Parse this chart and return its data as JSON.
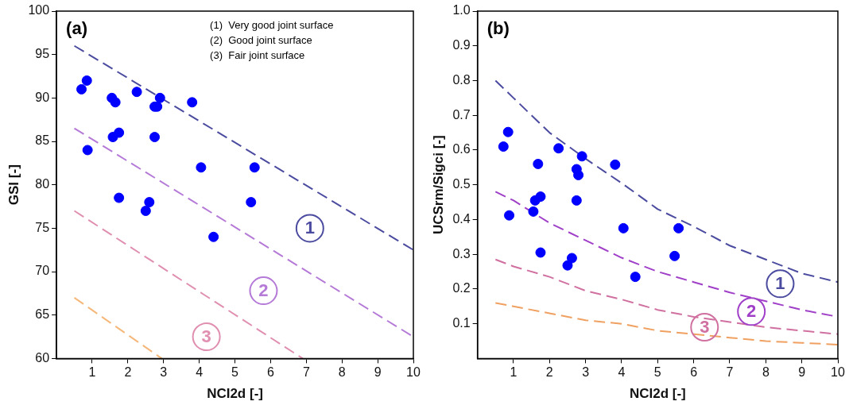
{
  "chart_data": [
    {
      "type": "scatter",
      "title": "(a)",
      "xlabel": "NCI2d [-]",
      "ylabel": "GSI [-]",
      "xlim": [
        0,
        10
      ],
      "ylim": [
        60,
        100
      ],
      "xticks": [
        1,
        2,
        3,
        4,
        5,
        6,
        7,
        8,
        9,
        10
      ],
      "yticks": [
        60,
        65,
        70,
        75,
        80,
        85,
        90,
        95,
        100
      ],
      "grid": false,
      "legend": false,
      "annotations": [
        "(1)  Very good joint surface",
        "(2)  Good joint surface",
        "(3)  Fair joint surface",
        {
          "text": "1",
          "x": 7.1,
          "y": 75
        },
        {
          "text": "2",
          "x": 5.8,
          "y": 67.8
        },
        {
          "text": "3",
          "x": 4.2,
          "y": 62.5
        }
      ],
      "series": [
        {
          "color": "#0000ff",
          "marker": "circle",
          "x": [
            0.7,
            0.85,
            0.87,
            1.55,
            1.65,
            1.58,
            1.75,
            1.75,
            2.25,
            2.75,
            2.82,
            2.9,
            2.75,
            2.6,
            2.5,
            3.8,
            4.05,
            4.4,
            5.55,
            5.45
          ],
          "values": [
            91,
            92,
            84,
            90,
            89.5,
            85.5,
            86,
            78.5,
            90.7,
            89,
            89,
            90,
            85.5,
            78,
            77,
            89.5,
            82,
            74,
            82,
            78
          ]
        },
        {
          "type": "line",
          "color": "#4b4ba0",
          "marker": "none",
          "line_style": "dashed",
          "x": [
            0.5,
            10
          ],
          "values": [
            96,
            72.5
          ]
        },
        {
          "type": "line",
          "color": "#b57ad8",
          "marker": "none",
          "line_style": "dashed",
          "x": [
            0.5,
            10
          ],
          "values": [
            86.5,
            62.5
          ]
        },
        {
          "type": "line",
          "color": "#e08fb0",
          "marker": "none",
          "line_style": "dashed",
          "x": [
            0.5,
            6.9
          ],
          "values": [
            77,
            60
          ]
        },
        {
          "type": "line",
          "color": "#f5b77a",
          "marker": "none",
          "line_style": "dashed",
          "x": [
            0.5,
            2.95
          ],
          "values": [
            67,
            60
          ]
        }
      ]
    },
    {
      "type": "scatter",
      "title": "(b)",
      "xlabel": "NCI2d [-]",
      "ylabel": "UCSrm/Sigci [-]",
      "xlim": [
        0,
        10
      ],
      "ylim": [
        0,
        1
      ],
      "xticks": [
        1,
        2,
        3,
        4,
        5,
        6,
        7,
        8,
        9,
        10
      ],
      "yticks": [
        0.1,
        0.2,
        0.3,
        0.4,
        0.5,
        0.6,
        0.7,
        0.8,
        0.9,
        {
          "value": 1,
          "label": "1.0"
        }
      ],
      "grid": false,
      "legend": false,
      "annotations": [
        {
          "text": "1",
          "x": 8.4,
          "y": 0.215
        },
        {
          "text": "2",
          "x": 7.6,
          "y": 0.135
        },
        {
          "text": "3",
          "x": 6.3,
          "y": 0.09
        }
      ],
      "series": [
        {
          "color": "#0000ff",
          "marker": "circle",
          "x": [
            0.72,
            0.85,
            0.88,
            1.55,
            1.6,
            1.75,
            1.68,
            1.75,
            2.25,
            2.75,
            2.8,
            2.9,
            2.75,
            2.62,
            2.5,
            3.82,
            4.05,
            4.38,
            5.58,
            5.47
          ],
          "values": [
            0.61,
            0.652,
            0.412,
            0.423,
            0.455,
            0.466,
            0.56,
            0.305,
            0.605,
            0.545,
            0.528,
            0.582,
            0.455,
            0.289,
            0.268,
            0.558,
            0.375,
            0.235,
            0.375,
            0.295
          ]
        },
        {
          "type": "line",
          "color": "#4b4ba0",
          "marker": "none",
          "line_style": "dashed",
          "x": [
            0.5,
            1,
            2,
            3,
            4,
            5,
            6,
            7,
            8,
            9,
            10
          ],
          "values": [
            0.8,
            0.75,
            0.65,
            0.575,
            0.505,
            0.43,
            0.38,
            0.325,
            0.285,
            0.245,
            0.22
          ]
        },
        {
          "type": "line",
          "color": "#a040c8",
          "marker": "none",
          "line_style": "dashed",
          "x": [
            0.5,
            1,
            2,
            3,
            4,
            5,
            6,
            7,
            8,
            9,
            10
          ],
          "values": [
            0.48,
            0.455,
            0.39,
            0.34,
            0.29,
            0.25,
            0.22,
            0.19,
            0.165,
            0.14,
            0.12
          ]
        },
        {
          "type": "line",
          "color": "#d070a0",
          "marker": "none",
          "line_style": "dashed",
          "x": [
            0.5,
            1,
            2,
            3,
            4,
            5,
            6,
            7,
            8,
            9,
            10
          ],
          "values": [
            0.285,
            0.265,
            0.235,
            0.195,
            0.17,
            0.14,
            0.12,
            0.105,
            0.09,
            0.08,
            0.07
          ]
        },
        {
          "type": "line",
          "color": "#f0a060",
          "marker": "none",
          "line_style": "dashed",
          "x": [
            0.5,
            1,
            2,
            3,
            4,
            5,
            6,
            7,
            8,
            9,
            10
          ],
          "values": [
            0.16,
            0.15,
            0.13,
            0.11,
            0.1,
            0.08,
            0.07,
            0.06,
            0.05,
            0.045,
            0.04
          ]
        }
      ]
    }
  ]
}
